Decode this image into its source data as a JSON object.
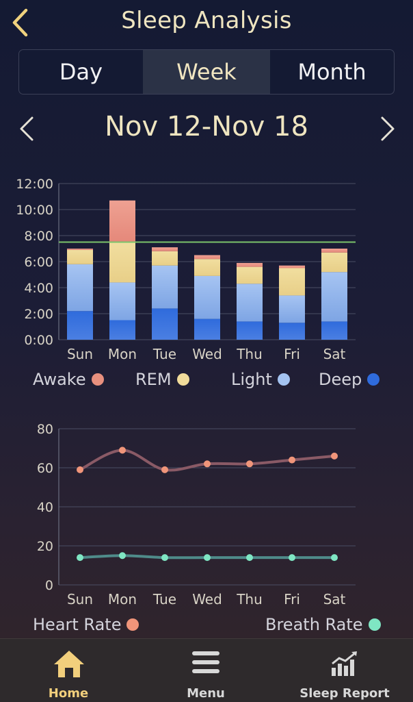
{
  "header": {
    "title": "Sleep Analysis"
  },
  "tabs": [
    {
      "label": "Day",
      "active": false
    },
    {
      "label": "Week",
      "active": true
    },
    {
      "label": "Month",
      "active": false
    }
  ],
  "range": {
    "label": "Nov 12-Nov 18"
  },
  "colors": {
    "awake": "#e8907e",
    "rem": "#f1dc9b",
    "light": "#a4c3f1",
    "deep": "#2f6bdc",
    "heart": "#f0957a",
    "breath": "#7fe6c3",
    "goal": "#7cc36b",
    "active_tab": "#f2cf7c",
    "inactive_tab": "#d8d8d8"
  },
  "chart_data": [
    {
      "type": "bar",
      "stacked": true,
      "categories": [
        "Sun",
        "Mon",
        "Tue",
        "Wed",
        "Thu",
        "Fri",
        "Sat"
      ],
      "yticks": [
        "0:00",
        "2:00",
        "4:00",
        "6:00",
        "8:00",
        "10:00",
        "12:00"
      ],
      "ylim": [
        0,
        12
      ],
      "goal_line": 7.5,
      "series": [
        {
          "name": "Deep",
          "values": [
            2.2,
            1.5,
            2.4,
            1.6,
            1.4,
            1.3,
            1.4
          ]
        },
        {
          "name": "Light",
          "values": [
            3.6,
            2.9,
            3.3,
            3.3,
            2.9,
            2.1,
            3.8
          ]
        },
        {
          "name": "REM",
          "values": [
            1.1,
            3.1,
            1.1,
            1.3,
            1.3,
            2.1,
            1.5
          ]
        },
        {
          "name": "Awake",
          "values": [
            0.1,
            3.2,
            0.3,
            0.3,
            0.3,
            0.2,
            0.3
          ]
        }
      ],
      "legend": [
        "Awake",
        "REM",
        "Light",
        "Deep"
      ]
    },
    {
      "type": "line",
      "categories": [
        "Sun",
        "Mon",
        "Tue",
        "Wed",
        "Thu",
        "Fri",
        "Sat"
      ],
      "yticks": [
        "0",
        "20",
        "40",
        "60",
        "80"
      ],
      "ylim": [
        0,
        80
      ],
      "series": [
        {
          "name": "Heart Rate",
          "values": [
            59,
            69,
            59,
            62,
            62,
            64,
            66
          ]
        },
        {
          "name": "Breath Rate",
          "values": [
            14,
            15,
            14,
            14,
            14,
            14,
            14
          ]
        }
      ],
      "legend": [
        "Heart Rate",
        "Breath Rate"
      ]
    }
  ],
  "tabbar": [
    {
      "label": "Home",
      "icon": "home-icon",
      "active": true
    },
    {
      "label": "Menu",
      "icon": "menu-icon",
      "active": false
    },
    {
      "label": "Sleep Report",
      "icon": "sleep-report-icon",
      "active": false
    }
  ]
}
